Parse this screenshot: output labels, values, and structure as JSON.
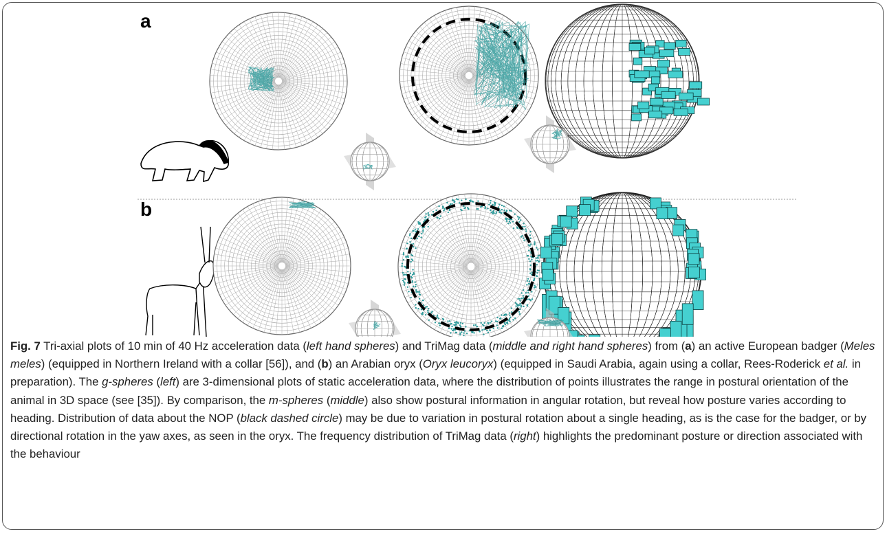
{
  "figure": {
    "panel_labels": [
      "a",
      "b"
    ]
  },
  "caption": {
    "runs": [
      "Fig. 7",
      " Tri-axial plots of 10 min of 40 Hz acceleration data (",
      "left hand spheres",
      ") and TriMag data (",
      "middle and right hand spheres",
      ") from (",
      "a",
      ") an active European badger (",
      "Meles meles",
      ") (equipped in Northern Ireland with a collar [56]), and (",
      "b",
      ") an Arabian oryx (",
      "Oryx leucoryx",
      ") (equipped in Saudi Arabia, again using a collar, Rees-Roderick ",
      "et al.",
      " in preparation). The ",
      "g-spheres",
      " (",
      "left",
      ") are 3-dimensional plots of static acceleration data, where the distribution of points illustrates the range in postural orientation of the animal in 3D space (see [35]). By comparison, the ",
      "m-spheres",
      " (",
      "middle",
      ") also show postural information in angular rotation, but reveal how posture varies according to heading. Distribution of data about the NOP (",
      "black dashed circle",
      ") may be due to variation in postural rotation about a single heading, as is the case for the badger, or by directional rotation in the yaw axes, as seen in the oryx. The frequency distribution of TriMag data (",
      "right",
      ") highlights the predominant posture or direction associated with the behaviour"
    ]
  }
}
